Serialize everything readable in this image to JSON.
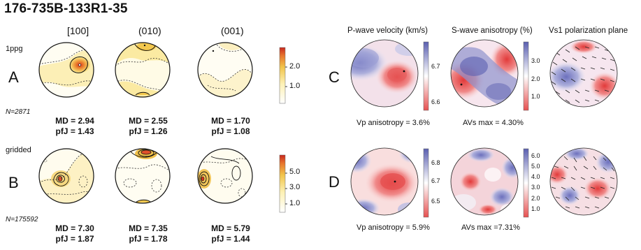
{
  "title": "176-735B-133R1-35",
  "columns": [
    "[100]",
    "(010)",
    "(001)"
  ],
  "labels": {
    "density": "1ppg",
    "gridded": "gridded",
    "row_a": "A",
    "row_b": "B",
    "row_c": "C",
    "row_d": "D"
  },
  "row_a": {
    "n": "N=2871",
    "md": [
      "MD = 2.94",
      "MD = 2.55",
      "MD = 1.70"
    ],
    "pfj": [
      "pfJ = 1.43",
      "pfJ = 1.26",
      "pfJ = 1.08"
    ],
    "scale_ticks": [
      "2.0",
      "1.0"
    ]
  },
  "row_b": {
    "n": "N=175592",
    "md": [
      "MD = 7.30",
      "MD = 7.35",
      "MD = 5.79"
    ],
    "pfj": [
      "pfJ = 1.87",
      "pfJ = 1.78",
      "pfJ = 1.44"
    ],
    "scale_ticks": [
      "5.0",
      "3.0",
      "1.0"
    ]
  },
  "seismic_headers": {
    "vp": "P-wave velocity (km/s)",
    "avs": "S-wave anisotropy (%)",
    "vs1": "Vs1 polarization plane"
  },
  "row_c": {
    "vp_ticks": [
      "6.7",
      "6.6"
    ],
    "avs_ticks": [
      "3.0",
      "2.0",
      "1.0"
    ],
    "vp_caption": "Vp anisotropy = 3.6%",
    "avs_caption": "AVs max = 4.30%"
  },
  "row_d": {
    "vp_ticks": [
      "6.8",
      "6.7",
      "6.5"
    ],
    "avs_ticks": [
      "6.0",
      "5.0",
      "4.0",
      "3.0",
      "2.0",
      "1.0"
    ],
    "vp_caption": "Vp anisotropy = 5.9%",
    "avs_caption": "AVs max =7.31%"
  },
  "colors": {
    "density_low": "#fffbe8",
    "density_mid": "#f5d56a",
    "density_high": "#e0492a",
    "fast": "#6b6fb8",
    "slow": "#e65050"
  }
}
